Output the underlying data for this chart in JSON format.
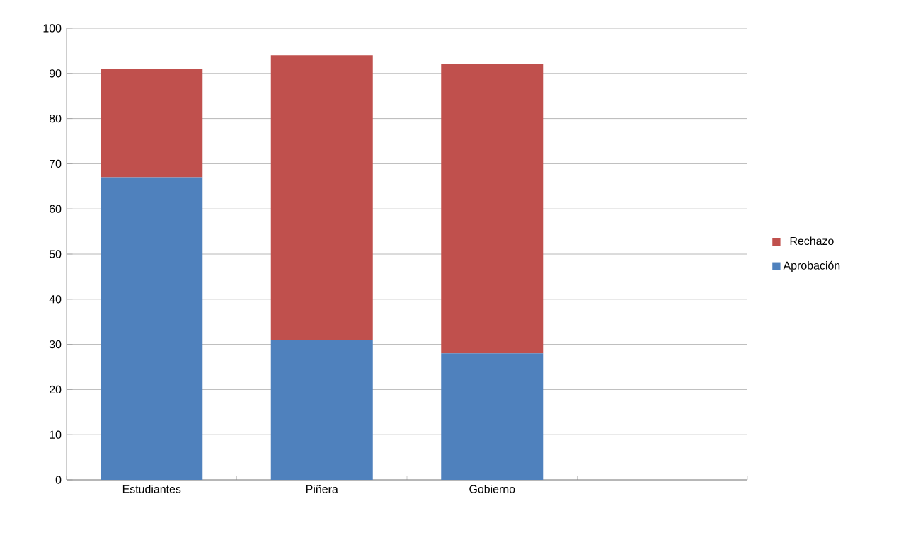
{
  "chart_data": {
    "type": "bar",
    "stacked": true,
    "categories": [
      "Estudiantes",
      "Piñera",
      "Gobierno",
      null
    ],
    "series": [
      {
        "name": "Aprobación",
        "color": "#4f81bd",
        "values": [
          67,
          31,
          28,
          null
        ]
      },
      {
        "name": "Rechazo",
        "color": "#c0504d",
        "values": [
          24,
          63,
          64,
          null
        ]
      }
    ],
    "ylim": [
      0,
      100
    ],
    "yticks": [
      0,
      10,
      20,
      30,
      40,
      50,
      60,
      70,
      80,
      90,
      100
    ],
    "grid": "y",
    "legend": "right"
  }
}
